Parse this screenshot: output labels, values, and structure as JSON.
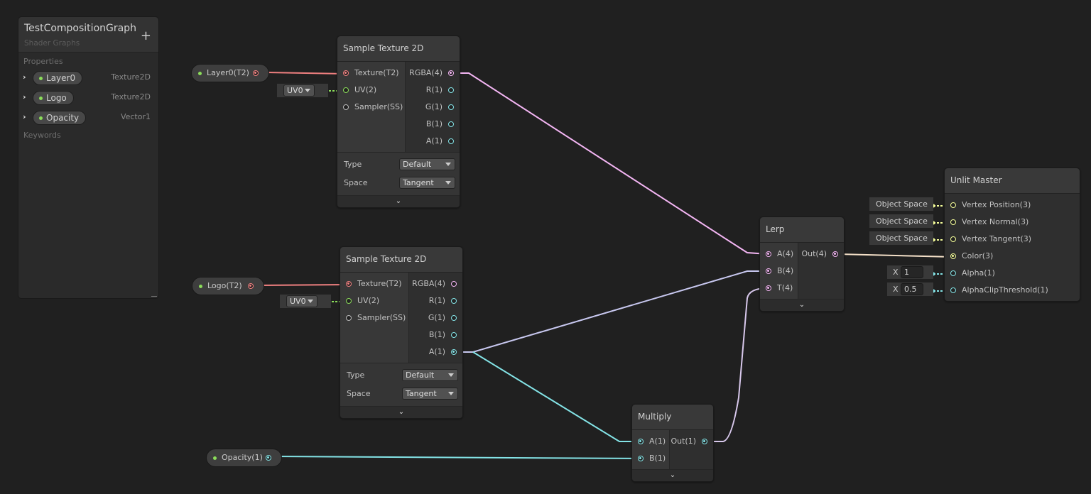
{
  "blackboard": {
    "title": "TestCompositionGraph",
    "subtitle": "Shader Graphs",
    "add_label": "+",
    "properties_label": "Properties",
    "keywords_label": "Keywords",
    "properties": [
      {
        "name": "Layer0",
        "type": "Texture2D"
      },
      {
        "name": "Logo",
        "type": "Texture2D"
      },
      {
        "name": "Opacity",
        "type": "Vector1"
      }
    ]
  },
  "property_nodes": [
    {
      "label": "Layer0(T2)",
      "port_color": "#f08080"
    },
    {
      "label": "Logo(T2)",
      "port_color": "#f08080"
    },
    {
      "label": "Opacity(1)",
      "port_color": "#84e4e7"
    }
  ],
  "nodes": [
    {
      "id": "sample1",
      "title": "Sample Texture 2D",
      "inputs": [
        {
          "label": "Texture(T2)",
          "color": "#f08080",
          "connected": true
        },
        {
          "label": "UV(2)",
          "color": "#8bdc5a",
          "connected": false
        },
        {
          "label": "Sampler(SS)",
          "color": "#bbbbbb",
          "connected": false
        }
      ],
      "outputs": [
        {
          "label": "RGBA(4)",
          "color": "#f4b6f4",
          "connected": true
        },
        {
          "label": "R(1)",
          "color": "#84e4e7",
          "connected": false
        },
        {
          "label": "G(1)",
          "color": "#84e4e7",
          "connected": false
        },
        {
          "label": "B(1)",
          "color": "#84e4e7",
          "connected": false
        },
        {
          "label": "A(1)",
          "color": "#84e4e7",
          "connected": false
        }
      ],
      "controls": [
        {
          "label": "Type",
          "value": "Default"
        },
        {
          "label": "Space",
          "value": "Tangent"
        }
      ],
      "uv_default": "UV0"
    },
    {
      "id": "sample2",
      "title": "Sample Texture 2D",
      "inputs": [
        {
          "label": "Texture(T2)",
          "color": "#f08080",
          "connected": true
        },
        {
          "label": "UV(2)",
          "color": "#8bdc5a",
          "connected": false
        },
        {
          "label": "Sampler(SS)",
          "color": "#bbbbbb",
          "connected": false
        }
      ],
      "outputs": [
        {
          "label": "RGBA(4)",
          "color": "#f4b6f4",
          "connected": false
        },
        {
          "label": "R(1)",
          "color": "#84e4e7",
          "connected": false
        },
        {
          "label": "G(1)",
          "color": "#84e4e7",
          "connected": false
        },
        {
          "label": "B(1)",
          "color": "#84e4e7",
          "connected": false
        },
        {
          "label": "A(1)",
          "color": "#84e4e7",
          "connected": true
        }
      ],
      "controls": [
        {
          "label": "Type",
          "value": "Default"
        },
        {
          "label": "Space",
          "value": "Tangent"
        }
      ],
      "uv_default": "UV0"
    },
    {
      "id": "lerp",
      "title": "Lerp",
      "inputs": [
        {
          "label": "A(4)",
          "color": "#f4b6f4",
          "connected": true
        },
        {
          "label": "B(4)",
          "color": "#f4b6f4",
          "connected": true
        },
        {
          "label": "T(4)",
          "color": "#f4b6f4",
          "connected": true
        }
      ],
      "outputs": [
        {
          "label": "Out(4)",
          "color": "#f4b6f4",
          "connected": true
        }
      ],
      "controls": []
    },
    {
      "id": "multiply",
      "title": "Multiply",
      "inputs": [
        {
          "label": "A(1)",
          "color": "#84e4e7",
          "connected": true
        },
        {
          "label": "B(1)",
          "color": "#84e4e7",
          "connected": true
        }
      ],
      "outputs": [
        {
          "label": "Out(1)",
          "color": "#84e4e7",
          "connected": true
        }
      ],
      "controls": []
    },
    {
      "id": "master",
      "title": "Unlit Master",
      "inputs": [
        {
          "label": "Vertex Position(3)",
          "color": "#f6ff9a",
          "connected": false,
          "default": "Object Space"
        },
        {
          "label": "Vertex Normal(3)",
          "color": "#f6ff9a",
          "connected": false,
          "default": "Object Space"
        },
        {
          "label": "Vertex Tangent(3)",
          "color": "#f6ff9a",
          "connected": false,
          "default": "Object Space"
        },
        {
          "label": "Color(3)",
          "color": "#f6ff9a",
          "connected": true
        },
        {
          "label": "Alpha(1)",
          "color": "#84e4e7",
          "connected": false,
          "default_x": "1"
        },
        {
          "label": "AlphaClipThreshold(1)",
          "color": "#84e4e7",
          "connected": false,
          "default_x": "0.5"
        }
      ],
      "outputs": [],
      "controls": []
    }
  ],
  "x_label": "X",
  "expand_icon": "chevron-down-icon",
  "colors": {
    "texture": "#f08080",
    "vector1": "#84e4e7",
    "vector4": "#f4b6f4",
    "vector3": "#f6ff9a",
    "vector2": "#8bdc5a"
  }
}
